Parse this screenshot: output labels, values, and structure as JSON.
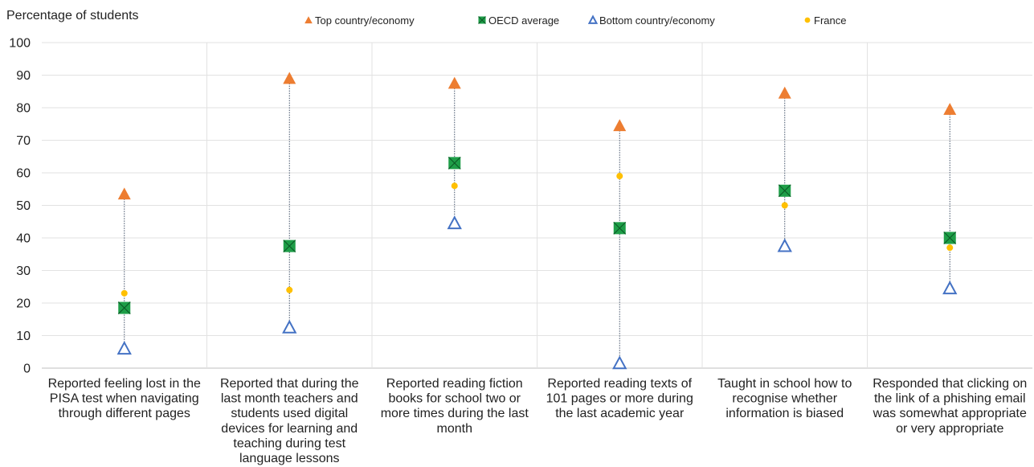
{
  "chart_data": {
    "type": "scatter",
    "ylabel": "Percentage of students",
    "ylim": [
      0,
      100
    ],
    "yticks": [
      0,
      10,
      20,
      30,
      40,
      50,
      60,
      70,
      80,
      90,
      100
    ],
    "grid": true,
    "legend_position": "top",
    "categories": [
      [
        "Reported feeling lost in the",
        "PISA test when navigating",
        "through different pages"
      ],
      [
        "Reported that during the",
        "last month teachers and",
        "students used digital",
        "devices for learning and",
        "teaching during test",
        "language lessons"
      ],
      [
        "Reported reading fiction",
        "books for school two or",
        "more times during the last",
        "month"
      ],
      [
        "Reported reading texts of",
        "101 pages or more during",
        "the last academic year"
      ],
      [
        "Taught in school how to",
        "recognise whether",
        "information is biased"
      ],
      [
        "Responded that clicking on",
        "the link of a phishing email",
        "was somewhat appropriate",
        "or very appropriate"
      ]
    ],
    "series": [
      {
        "name": "Top country/economy",
        "marker": "triangle-filled",
        "color": "#ED7D31",
        "values": [
          53.5,
          89,
          87.5,
          74.5,
          84.5,
          79.5
        ]
      },
      {
        "name": "OECD average",
        "marker": "square-x",
        "color": "#1E9E48",
        "values": [
          18.5,
          37.5,
          63,
          43,
          54.5,
          40
        ]
      },
      {
        "name": "Bottom country/economy",
        "marker": "triangle-open",
        "color": "#4472C4",
        "values": [
          6,
          12.5,
          44.5,
          1.5,
          37.5,
          24.5
        ]
      },
      {
        "name": "France",
        "marker": "dot",
        "color": "#FFC000",
        "values": [
          23,
          24,
          56,
          59,
          50,
          37
        ]
      }
    ]
  }
}
